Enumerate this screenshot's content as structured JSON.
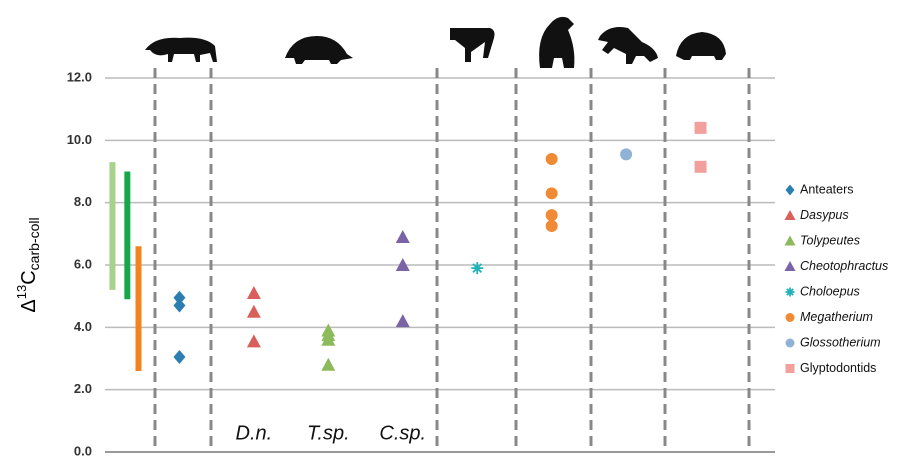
{
  "chart_data": {
    "type": "scatter",
    "ylabel": {
      "prefix": "Δ",
      "sup": "13",
      "main": "C",
      "sub": "carb-coll"
    },
    "ylim": [
      0,
      12
    ],
    "yticks": [
      {
        "value": 0,
        "label": "0.0"
      },
      {
        "value": 2,
        "label": "2.0"
      },
      {
        "value": 4,
        "label": "4.0"
      },
      {
        "value": 6,
        "label": "6.0"
      },
      {
        "value": 8,
        "label": "8.0"
      },
      {
        "value": 10,
        "label": "10.0"
      },
      {
        "value": 12,
        "label": "12.0"
      }
    ],
    "xlim": [
      0,
      9
    ],
    "grid": true,
    "legend": "right",
    "series": [
      {
        "name": "Anteaters",
        "color": "#2b7fb0",
        "marker": "diamond",
        "italic": false,
        "x": [
          1,
          1,
          1
        ],
        "values": [
          4.95,
          4.7,
          3.05
        ]
      },
      {
        "name": "Dasypus",
        "color": "#d9605a",
        "marker": "triangle",
        "italic": true,
        "x": [
          2,
          2,
          2
        ],
        "values": [
          5.1,
          4.5,
          3.55
        ]
      },
      {
        "name": "Tolypeutes",
        "color": "#8dba5c",
        "marker": "triangle",
        "italic": true,
        "x": [
          3,
          3,
          3,
          3
        ],
        "values": [
          3.9,
          3.75,
          3.6,
          2.8
        ]
      },
      {
        "name": "Cheotophractus",
        "color": "#7b64a6",
        "marker": "triangle",
        "italic": true,
        "x": [
          4,
          4,
          4
        ],
        "values": [
          6.9,
          6.0,
          4.2
        ]
      },
      {
        "name": "Choloepus",
        "color": "#1fb3b8",
        "marker": "asterisk",
        "italic": true,
        "x": [
          5
        ],
        "values": [
          5.9
        ]
      },
      {
        "name": "Megatherium",
        "color": "#f08a34",
        "marker": "circle",
        "italic": true,
        "x": [
          6,
          6,
          6,
          6
        ],
        "values": [
          9.4,
          8.3,
          7.6,
          7.25
        ]
      },
      {
        "name": "Glossotherium",
        "color": "#8fb3d6",
        "marker": "circle",
        "italic": true,
        "x": [
          7
        ],
        "values": [
          9.55
        ]
      },
      {
        "name": "Glyptodontids",
        "color": "#f2a09c",
        "marker": "square",
        "italic": false,
        "x": [
          8,
          8
        ],
        "values": [
          10.4,
          9.15
        ]
      }
    ],
    "ranges": [
      {
        "color": "#a6d28a",
        "x": 0.1,
        "low": 5.2,
        "high": 9.3
      },
      {
        "color": "#14a84a",
        "x": 0.3,
        "low": 4.9,
        "high": 9.0
      },
      {
        "color": "#f58220",
        "x": 0.45,
        "low": 2.6,
        "high": 6.6
      }
    ],
    "annotations": [
      {
        "text": "D.n.",
        "x": 2
      },
      {
        "text": "T.sp.",
        "x": 3
      },
      {
        "text": "C.sp.",
        "x": 4
      }
    ]
  }
}
